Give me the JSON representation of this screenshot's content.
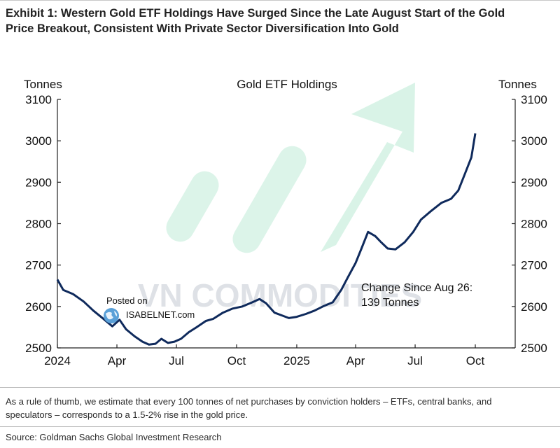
{
  "header": {
    "title_line1": "Exhibit 1: Western Gold ETF Holdings Have Surged Since the Late August Start of the Gold",
    "title_line2": "Price Breakout, Consistent With Private Sector Diversification Into Gold"
  },
  "watermarks": {
    "brand": "VN COMMODITIES",
    "posted_on": "Posted on",
    "site": "ISABELNET.com"
  },
  "footer": {
    "note_line1": "As a rule of thumb, we estimate that every 100 tonnes of net purchases by conviction holders – ETFs, central banks, and",
    "note_line2": "speculators – corresponds to a 1.5-2% rise in the gold price.",
    "source": "Source: Goldman Sachs Global Investment Research"
  },
  "colors": {
    "line": "#0f2a5c",
    "arrow": "#b9ead3",
    "watermark": "#d4d8de"
  },
  "chart_data": {
    "type": "line",
    "title": "Gold ETF Holdings",
    "ylabel_left": "Tonnes",
    "ylabel_right": "Tonnes",
    "ylim": [
      2500,
      3100
    ],
    "yticks": [
      2500,
      2600,
      2700,
      2800,
      2900,
      3000,
      3100
    ],
    "xlim": [
      "2024-01-01",
      "2025-12-01"
    ],
    "xticks": [
      {
        "date": "2024-01-01",
        "label": "2024"
      },
      {
        "date": "2024-04-01",
        "label": "Apr"
      },
      {
        "date": "2024-07-01",
        "label": "Jul"
      },
      {
        "date": "2024-10-01",
        "label": "Oct"
      },
      {
        "date": "2025-01-01",
        "label": "2025"
      },
      {
        "date": "2025-04-01",
        "label": "Apr"
      },
      {
        "date": "2025-07-01",
        "label": "Jul"
      },
      {
        "date": "2025-10-01",
        "label": "Oct"
      }
    ],
    "annotation": {
      "line1": "Change Since Aug 26:",
      "line2": "139 Tonnes"
    },
    "grid": false,
    "series": [
      {
        "x": [
          "2024-01-01",
          "2024-01-10",
          "2024-01-25",
          "2024-02-10",
          "2024-02-25",
          "2024-03-10",
          "2024-03-25",
          "2024-04-05",
          "2024-04-15",
          "2024-04-28",
          "2024-05-10",
          "2024-05-20",
          "2024-05-30",
          "2024-06-08",
          "2024-06-18",
          "2024-06-28",
          "2024-07-08",
          "2024-07-20",
          "2024-08-01",
          "2024-08-15",
          "2024-08-26",
          "2024-09-10",
          "2024-09-25",
          "2024-10-10",
          "2024-10-25",
          "2024-11-05",
          "2024-11-15",
          "2024-11-28",
          "2024-12-10",
          "2024-12-20",
          "2025-01-01",
          "2025-01-15",
          "2025-01-28",
          "2025-02-10",
          "2025-02-25",
          "2025-03-10",
          "2025-03-20",
          "2025-04-01",
          "2025-04-10",
          "2025-04-20",
          "2025-05-01",
          "2025-05-10",
          "2025-05-20",
          "2025-06-01",
          "2025-06-15",
          "2025-06-28",
          "2025-07-10",
          "2025-07-25",
          "2025-08-10",
          "2025-08-25",
          "2025-09-05",
          "2025-09-15",
          "2025-09-25",
          "2025-10-01"
        ],
        "values": [
          2665,
          2640,
          2630,
          2612,
          2590,
          2572,
          2552,
          2568,
          2545,
          2528,
          2515,
          2508,
          2510,
          2522,
          2512,
          2515,
          2522,
          2538,
          2550,
          2565,
          2570,
          2585,
          2595,
          2600,
          2610,
          2618,
          2608,
          2585,
          2578,
          2572,
          2575,
          2582,
          2590,
          2600,
          2610,
          2640,
          2670,
          2705,
          2740,
          2780,
          2770,
          2755,
          2740,
          2738,
          2755,
          2780,
          2810,
          2830,
          2850,
          2860,
          2880,
          2920,
          2960,
          3018
        ]
      }
    ]
  }
}
